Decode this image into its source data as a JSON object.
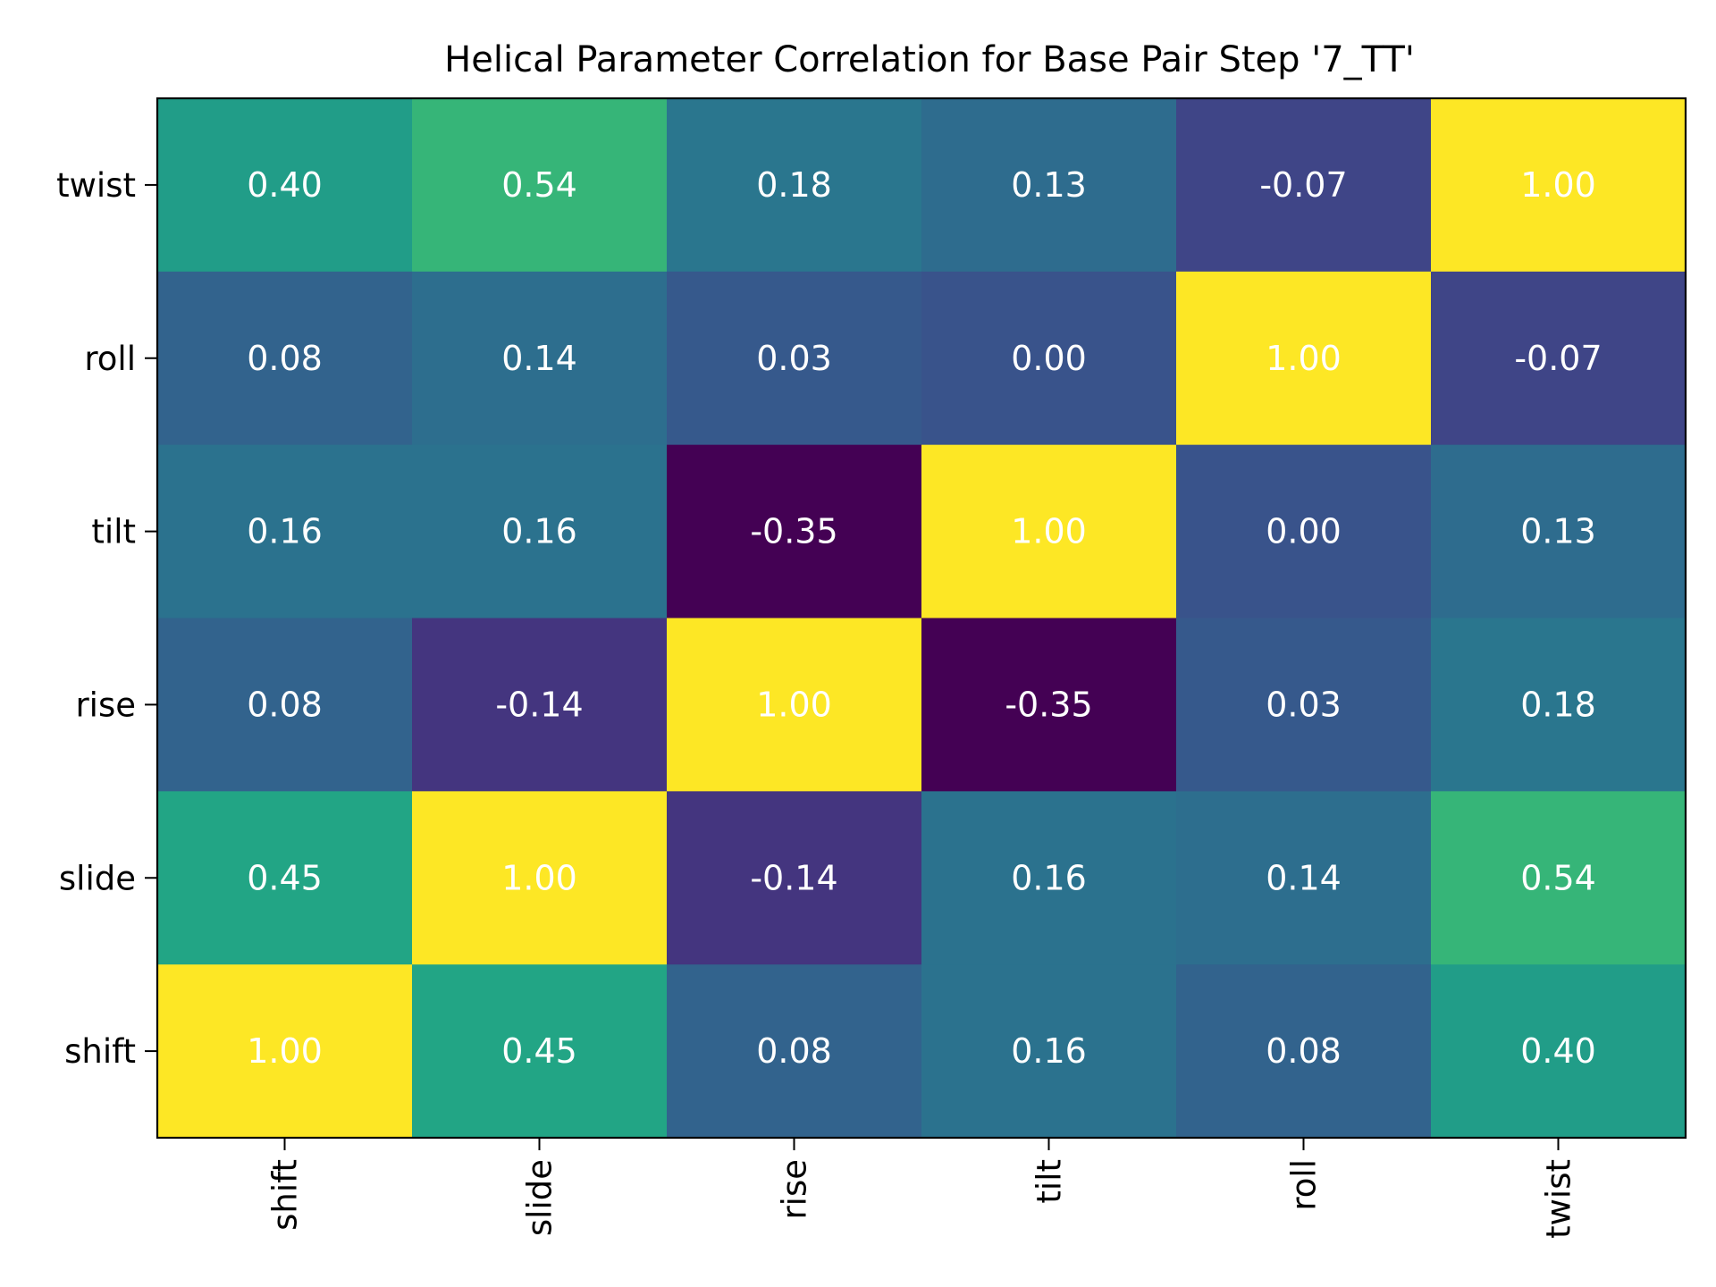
{
  "chart_data": {
    "type": "heatmap",
    "title": "Helical Parameter Correlation for Base Pair Step '7_TT'",
    "x_categories": [
      "shift",
      "slide",
      "rise",
      "tilt",
      "roll",
      "twist"
    ],
    "y_categories": [
      "twist",
      "roll",
      "tilt",
      "rise",
      "slide",
      "shift"
    ],
    "values": [
      [
        0.4,
        0.54,
        0.18,
        0.13,
        -0.07,
        1.0
      ],
      [
        0.08,
        0.14,
        0.03,
        0.0,
        1.0,
        -0.07
      ],
      [
        0.16,
        0.16,
        -0.35,
        1.0,
        0.0,
        0.13
      ],
      [
        0.08,
        -0.14,
        1.0,
        -0.35,
        0.03,
        0.18
      ],
      [
        0.45,
        1.0,
        -0.14,
        0.16,
        0.14,
        0.54
      ],
      [
        1.0,
        0.45,
        0.08,
        0.16,
        0.08,
        0.4
      ]
    ],
    "value_range": [
      -0.35,
      1.0
    ],
    "colormap": "viridis",
    "value_format": "0.00",
    "annotation_color": "#ffffff",
    "grid": false,
    "legend": "none"
  }
}
